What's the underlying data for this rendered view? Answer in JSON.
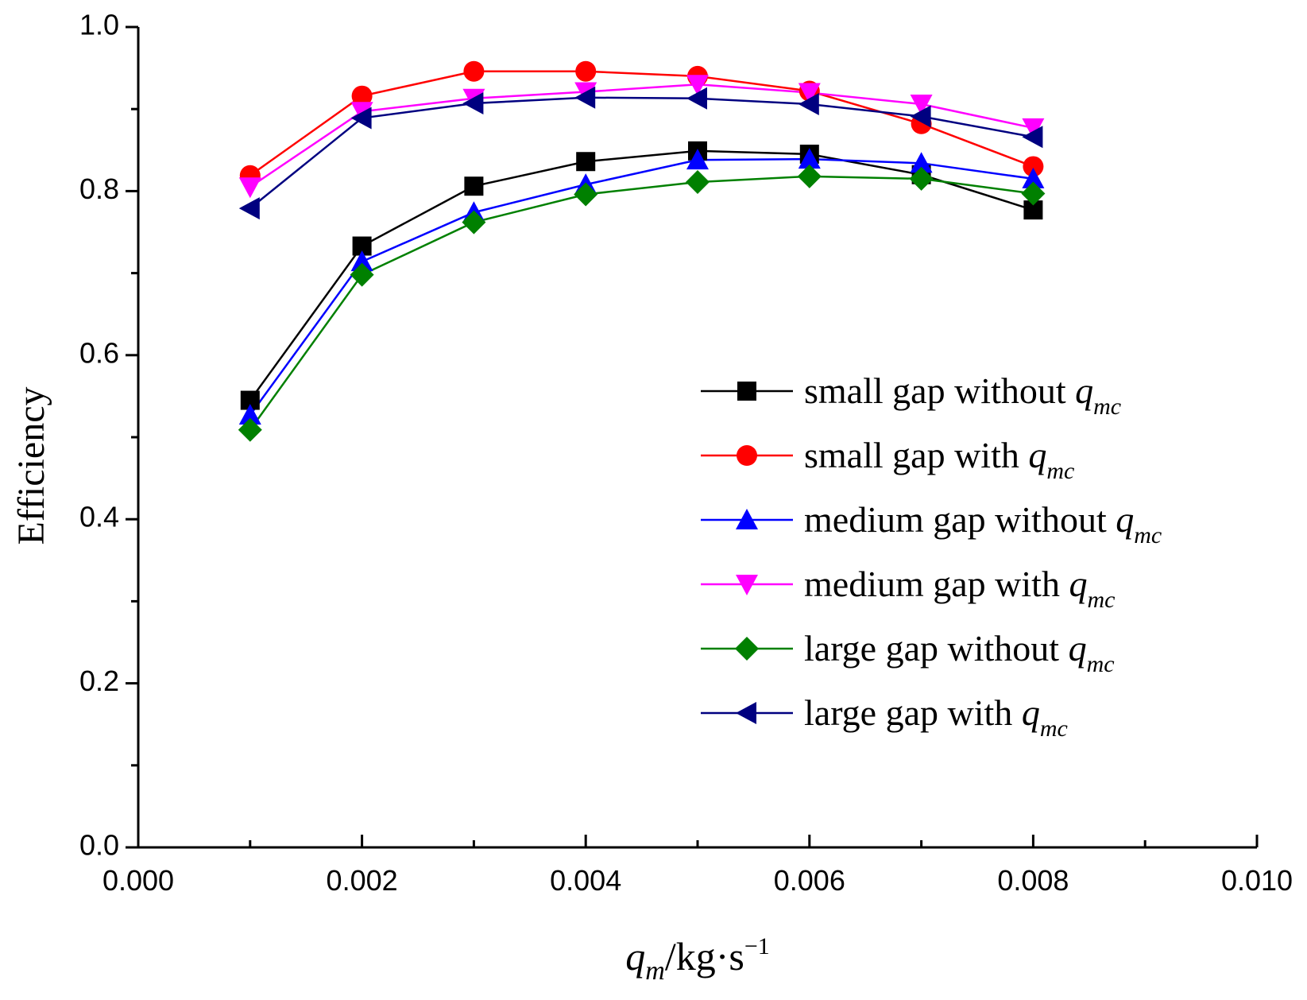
{
  "chart_data": {
    "type": "line",
    "title": "",
    "xlabel": {
      "main": "q",
      "sub": "m",
      "rest": "/kg·s",
      "sup": "−1"
    },
    "ylabel": "Efficiency",
    "xlim": [
      0.0,
      0.01
    ],
    "ylim": [
      0.0,
      1.0
    ],
    "x_ticks": [
      "0.000",
      "0.002",
      "0.004",
      "0.006",
      "0.008",
      "0.010"
    ],
    "y_ticks": [
      "0.0",
      "0.2",
      "0.4",
      "0.6",
      "0.8",
      "1.0"
    ],
    "grid": false,
    "legend_position": "center-right",
    "x": [
      0.001,
      0.002,
      0.003,
      0.004,
      0.005,
      0.006,
      0.007,
      0.008
    ],
    "series": [
      {
        "name": "small gap without",
        "var": "q",
        "sub": "mc",
        "color": "#000000",
        "marker": "square",
        "values": [
          0.545,
          0.733,
          0.806,
          0.836,
          0.849,
          0.845,
          0.82,
          0.777
        ]
      },
      {
        "name": "small gap with",
        "var": "q",
        "sub": "mc",
        "color": "#ff0000",
        "marker": "circle",
        "values": [
          0.819,
          0.916,
          0.946,
          0.946,
          0.94,
          0.922,
          0.882,
          0.83
        ]
      },
      {
        "name": "medium gap without",
        "var": "q",
        "sub": "mc",
        "color": "#0000ff",
        "marker": "triangle-up",
        "values": [
          0.527,
          0.714,
          0.774,
          0.808,
          0.838,
          0.839,
          0.834,
          0.815
        ]
      },
      {
        "name": "medium gap with",
        "var": "q",
        "sub": "mc",
        "color": "#ff00ff",
        "marker": "triangle-down",
        "values": [
          0.805,
          0.897,
          0.913,
          0.921,
          0.93,
          0.92,
          0.906,
          0.877
        ]
      },
      {
        "name": "large gap without",
        "var": "q",
        "sub": "mc",
        "color": "#008000",
        "marker": "diamond",
        "values": [
          0.509,
          0.698,
          0.762,
          0.796,
          0.811,
          0.818,
          0.815,
          0.797
        ]
      },
      {
        "name": "large gap with",
        "var": "q",
        "sub": "mc",
        "color": "#000080",
        "marker": "triangle-left",
        "values": [
          0.779,
          0.889,
          0.907,
          0.914,
          0.913,
          0.906,
          0.891,
          0.866
        ]
      }
    ]
  }
}
